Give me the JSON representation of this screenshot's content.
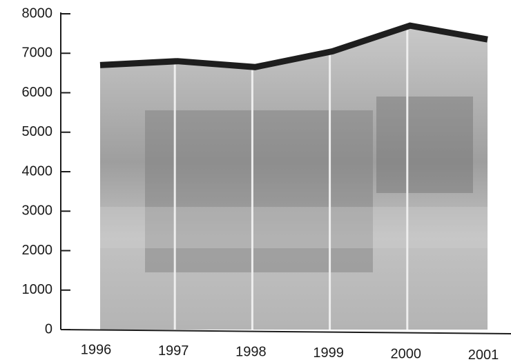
{
  "chart_data": {
    "type": "area",
    "categories": [
      "1996",
      "1997",
      "1998",
      "1999",
      "2000",
      "2001"
    ],
    "values": [
      6700,
      6800,
      6650,
      7050,
      7700,
      7350
    ],
    "color": "#1e1e1e",
    "area_color": "#bcbcbc",
    "ylim": [
      0,
      8000
    ],
    "yticks": [
      0,
      1000,
      2000,
      3000,
      4000,
      5000,
      6000,
      7000,
      8000
    ]
  }
}
